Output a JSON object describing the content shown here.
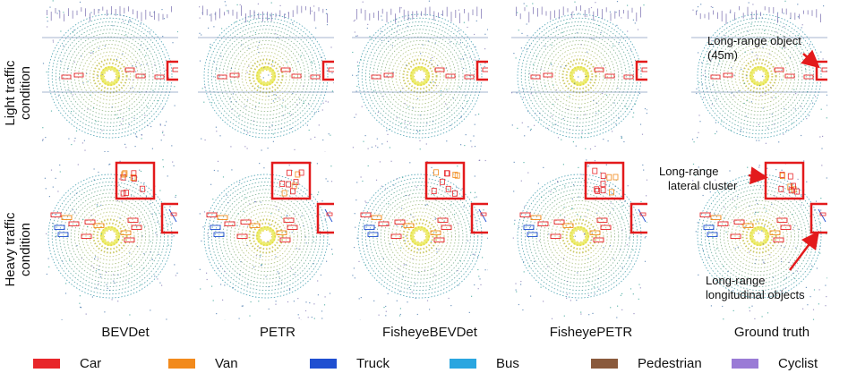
{
  "rows": [
    {
      "label_line1": "Light traffic",
      "label_line2": "condition"
    },
    {
      "label_line1": "Heavy traffic",
      "label_line2": "condition"
    }
  ],
  "columns": [
    {
      "title": "BEVDet"
    },
    {
      "title": "PETR"
    },
    {
      "title": "FisheyeBEVDet"
    },
    {
      "title": "FisheyePETR"
    },
    {
      "title": "Ground truth"
    }
  ],
  "annotations": {
    "long_range_object_line1": "Long-range object",
    "long_range_object_line2": "(45m)",
    "lateral_cluster_line1": "Long-range",
    "lateral_cluster_line2": "lateral cluster",
    "longitudinal_line1": "Long-range",
    "longitudinal_line2": "longitudinal objects"
  },
  "legend": [
    {
      "label": "Car",
      "color": "#e8262a"
    },
    {
      "label": "Van",
      "color": "#f28a1c"
    },
    {
      "label": "Truck",
      "color": "#1f4fd1"
    },
    {
      "label": "Bus",
      "color": "#2aa6e0"
    },
    {
      "label": "Pedestrian",
      "color": "#8a5a3c"
    },
    {
      "label": "Cyclist",
      "color": "#9a7bd6"
    }
  ],
  "highlight_color": "#e31a1c"
}
